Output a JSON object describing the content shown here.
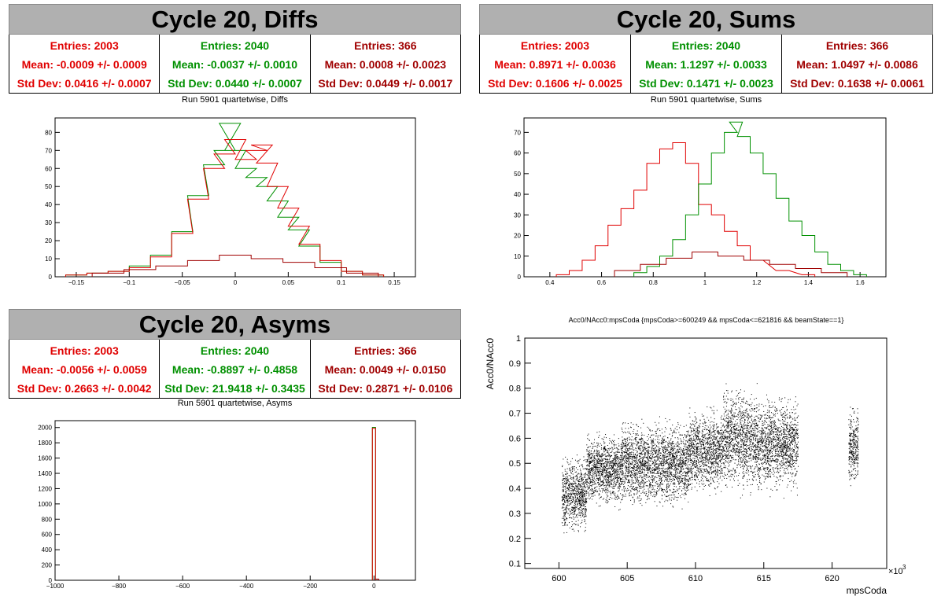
{
  "colors": {
    "red": "#e00000",
    "green": "#009000",
    "darkred": "#a00000",
    "titlebg": "#b0b0b0"
  },
  "panels": {
    "diffs": {
      "title": "Cycle 20, Diffs",
      "stats": [
        {
          "entries": "Entries: 2003",
          "mean": "Mean: -0.0009 +/- 0.0009",
          "std": "Std Dev: 0.0416 +/- 0.0007",
          "color": "#e00000"
        },
        {
          "entries": "Entries: 2040",
          "mean": "Mean: -0.0037 +/- 0.0010",
          "std": "Std Dev: 0.0440 +/- 0.0007",
          "color": "#009000"
        },
        {
          "entries": "Entries: 366",
          "mean": "Mean: 0.0008 +/- 0.0023",
          "std": "Std Dev: 0.0449 +/- 0.0017",
          "color": "#a00000"
        }
      ],
      "subtitle": "Run 5901 quartetwise, Diffs"
    },
    "sums": {
      "title": "Cycle 20, Sums",
      "stats": [
        {
          "entries": "Entries: 2003",
          "mean": "Mean: 0.8971 +/- 0.0036",
          "std": "Std Dev: 0.1606 +/- 0.0025",
          "color": "#e00000"
        },
        {
          "entries": "Entries: 2040",
          "mean": "Mean: 1.1297 +/- 0.0033",
          "std": "Std Dev: 0.1471 +/- 0.0023",
          "color": "#009000"
        },
        {
          "entries": "Entries: 366",
          "mean": "Mean: 1.0497 +/- 0.0086",
          "std": "Std Dev: 0.1638 +/- 0.0061",
          "color": "#a00000"
        }
      ],
      "subtitle": "Run 5901 quartetwise, Sums"
    },
    "asyms": {
      "title": "Cycle 20, Asyms",
      "stats": [
        {
          "entries": "Entries: 2003",
          "mean": "Mean: -0.0056 +/- 0.0059",
          "std": "Std Dev: 0.2663 +/- 0.0042",
          "color": "#e00000"
        },
        {
          "entries": "Entries: 2040",
          "mean": "Mean: -0.8897 +/- 0.4858",
          "std": "Std Dev: 21.9418 +/- 0.3435",
          "color": "#009000"
        },
        {
          "entries": "Entries: 366",
          "mean": "Mean: 0.0049 +/- 0.0150",
          "std": "Std Dev: 0.2871 +/- 0.0106",
          "color": "#a00000"
        }
      ],
      "subtitle": "Run 5901 quartetwise, Asyms"
    },
    "scatter": {
      "title": "Acc0/NAcc0:mpsCoda {mpsCoda>=600249 && mpsCoda<=621816 && beamState==1}",
      "xlabel": "mpsCoda",
      "ylabel": "Acc0/NAcc0",
      "xexp": "×10",
      "xexp_power": "3"
    }
  },
  "chart_data": [
    {
      "type": "histogram",
      "name": "diffs",
      "xlim": [
        -0.17,
        0.17
      ],
      "ylim": [
        0,
        88
      ],
      "xticks": [
        -0.15,
        -0.1,
        -0.05,
        0,
        0.05,
        0.1,
        0.15
      ],
      "xticklabels": [
        "−0.15",
        "−0.1",
        "−0.05",
        "0",
        "0.05",
        "0.1",
        "0.15"
      ],
      "yticks": [
        0,
        10,
        20,
        30,
        40,
        50,
        60,
        70,
        80
      ],
      "series": [
        {
          "color": "#009000",
          "centers": [
            -0.15,
            -0.13,
            -0.11,
            -0.09,
            -0.07,
            -0.05,
            -0.035,
            -0.02,
            -0.01,
            -0.005,
            0,
            0.01,
            0.02,
            0.03,
            0.04,
            0.05,
            0.06,
            0.07,
            0.09,
            0.11,
            0.13
          ],
          "values": [
            1,
            2,
            3,
            6,
            12,
            25,
            45,
            62,
            70,
            85,
            70,
            60,
            55,
            50,
            42,
            33,
            26,
            17,
            8,
            3,
            1
          ]
        },
        {
          "color": "#e00000",
          "centers": [
            -0.15,
            -0.13,
            -0.11,
            -0.09,
            -0.07,
            -0.05,
            -0.035,
            -0.02,
            -0.01,
            0,
            0.01,
            0.02,
            0.025,
            0.03,
            0.04,
            0.05,
            0.06,
            0.07,
            0.09,
            0.11,
            0.13
          ],
          "values": [
            1,
            2,
            3,
            5,
            11,
            24,
            43,
            60,
            68,
            76,
            65,
            70,
            73,
            63,
            50,
            38,
            28,
            18,
            9,
            3,
            1
          ]
        },
        {
          "color": "#a00000",
          "centers": [
            -0.12,
            -0.09,
            -0.06,
            -0.03,
            0,
            0.03,
            0.06,
            0.09,
            0.12
          ],
          "values": [
            2,
            4,
            6,
            9,
            12,
            10,
            8,
            5,
            2
          ]
        }
      ]
    },
    {
      "type": "histogram",
      "name": "sums",
      "xlim": [
        0.3,
        1.7
      ],
      "ylim": [
        0,
        77
      ],
      "xticks": [
        0.4,
        0.6,
        0.8,
        1,
        1.2,
        1.4,
        1.6
      ],
      "xticklabels": [
        "0.4",
        "0.6",
        "0.8",
        "1",
        "1.2",
        "1.4",
        "1.6"
      ],
      "yticks": [
        0,
        10,
        20,
        30,
        40,
        50,
        60,
        70
      ],
      "series": [
        {
          "color": "#e00000",
          "centers": [
            0.45,
            0.5,
            0.55,
            0.6,
            0.65,
            0.7,
            0.75,
            0.8,
            0.85,
            0.9,
            0.95,
            1.0,
            1.05,
            1.1,
            1.15,
            1.2,
            1.3,
            1.4
          ],
          "values": [
            1,
            3,
            8,
            15,
            25,
            33,
            42,
            55,
            62,
            65,
            55,
            35,
            30,
            22,
            15,
            8,
            3,
            1
          ]
        },
        {
          "color": "#009000",
          "centers": [
            0.75,
            0.8,
            0.85,
            0.9,
            0.95,
            1.0,
            1.05,
            1.1,
            1.12,
            1.15,
            1.2,
            1.25,
            1.3,
            1.35,
            1.4,
            1.45,
            1.5,
            1.55,
            1.6
          ],
          "values": [
            2,
            5,
            10,
            18,
            30,
            45,
            60,
            70,
            75,
            68,
            60,
            50,
            38,
            27,
            20,
            12,
            6,
            3,
            1
          ]
        },
        {
          "color": "#a00000",
          "centers": [
            0.7,
            0.8,
            0.9,
            1.0,
            1.1,
            1.2,
            1.3,
            1.4,
            1.5
          ],
          "values": [
            3,
            6,
            9,
            12,
            10,
            8,
            6,
            4,
            2
          ]
        }
      ]
    },
    {
      "type": "histogram",
      "name": "asyms",
      "xlim": [
        -1000,
        130
      ],
      "ylim": [
        0,
        2090
      ],
      "xticks": [
        -1000,
        -800,
        -600,
        -400,
        -200,
        0
      ],
      "xticklabels": [
        "−1000",
        "−800",
        "−600",
        "−400",
        "−200",
        "0"
      ],
      "yticks": [
        0,
        200,
        400,
        600,
        800,
        1000,
        1200,
        1400,
        1600,
        1800,
        2000
      ],
      "series": [
        {
          "color": "#009000",
          "centers": [
            0
          ],
          "values": [
            2003
          ],
          "binwidth": 10
        },
        {
          "color": "#e00000",
          "centers": [
            0
          ],
          "values": [
            1990
          ],
          "binwidth": 10
        },
        {
          "color": "#a00000",
          "centers": [
            10
          ],
          "values": [
            15
          ],
          "binwidth": 10
        }
      ]
    },
    {
      "type": "scatter",
      "name": "acc0-vs-mpscoda",
      "xlim": [
        597.5,
        624
      ],
      "ylim": [
        0.08,
        1.0
      ],
      "xticks": [
        600,
        605,
        610,
        615,
        620
      ],
      "xticklabels": [
        "600",
        "605",
        "610",
        "615",
        "620"
      ],
      "yticks": [
        0.1,
        0.2,
        0.3,
        0.4,
        0.5,
        0.6,
        0.7,
        0.8,
        0.9,
        1
      ],
      "yticklabels": [
        "0.1",
        "0.2",
        "0.3",
        "0.4",
        "0.5",
        "0.6",
        "0.7",
        "0.8",
        "0.9",
        "1"
      ],
      "clusters": [
        {
          "x": 600.2,
          "x2": 602.0,
          "ymin": 0.2,
          "ymax": 0.55
        },
        {
          "x": 602.0,
          "x2": 604.5,
          "ymin": 0.3,
          "ymax": 0.65
        },
        {
          "x": 604.5,
          "x2": 607.0,
          "ymin": 0.3,
          "ymax": 0.7
        },
        {
          "x": 607.0,
          "x2": 609.5,
          "ymin": 0.3,
          "ymax": 0.7
        },
        {
          "x": 609.5,
          "x2": 612.0,
          "ymin": 0.35,
          "ymax": 0.75
        },
        {
          "x": 612.0,
          "x2": 614.5,
          "ymin": 0.35,
          "ymax": 0.85
        },
        {
          "x": 614.5,
          "x2": 617.5,
          "ymin": 0.35,
          "ymax": 0.8
        },
        {
          "x": 621.2,
          "x2": 621.9,
          "ymin": 0.4,
          "ymax": 0.75
        }
      ]
    }
  ]
}
